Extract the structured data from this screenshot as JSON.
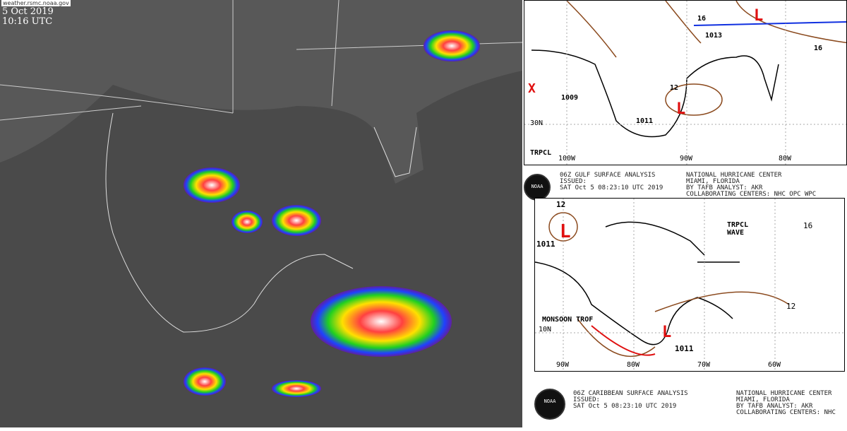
{
  "satellite": {
    "source": "weather.rsmc.noaa.gov",
    "date": "5 Oct 2019",
    "time": "10:16 UTC"
  },
  "gulf_map": {
    "labels": {
      "isobar_16": "16",
      "pressure_1013": "1013",
      "pressure_1009": "1009",
      "isobar_12": "12",
      "pressure_1011": "1011",
      "region": "TRPCL",
      "lon_100": "100W",
      "lon_90": "90W",
      "lon_80": "80W",
      "lat_30": "30N"
    },
    "header": {
      "title": "06Z GULF SURFACE ANALYSIS",
      "issued": "ISSUED:",
      "issued_time": "SAT Oct 5 08:23:10 UTC 2019",
      "center": "NATIONAL HURRICANE CENTER",
      "city": "MIAMI, FLORIDA",
      "analyst": "BY TAFB ANALYST: AKR",
      "collab": "COLLABORATING CENTERS: NHC OPC WPC"
    },
    "logo": "NOAA"
  },
  "caribbean_map": {
    "labels": {
      "isobar_12a": "12",
      "pressure_1011": "1011",
      "isobar_16": "16",
      "wave": "TRPCL\nWAVE",
      "monsoon": "MONSOON TROF",
      "lat_10": "10N",
      "lon_90": "90W",
      "lon_80": "80W",
      "lon_70": "70W",
      "lon_60": "60W",
      "isobar_12b": "12",
      "pressure_1011b": "1011"
    },
    "header": {
      "title": "06Z CARIBBEAN SURFACE ANALYSIS",
      "issued": "ISSUED:",
      "issued_time": "SAT Oct 5 08:23:10 UTC 2019",
      "center": "NATIONAL HURRICANE CENTER",
      "city": "MIAMI, FLORIDA",
      "analyst": "BY TAFB ANALYST: AKR",
      "collab": "COLLABORATING CENTERS: NHC"
    },
    "logo": "NOAA"
  },
  "colors": {
    "low_marker": "#e01010",
    "isobar": "#8b4a1e",
    "front_cold": "#1030e0",
    "convection_core": "#ff3030"
  }
}
